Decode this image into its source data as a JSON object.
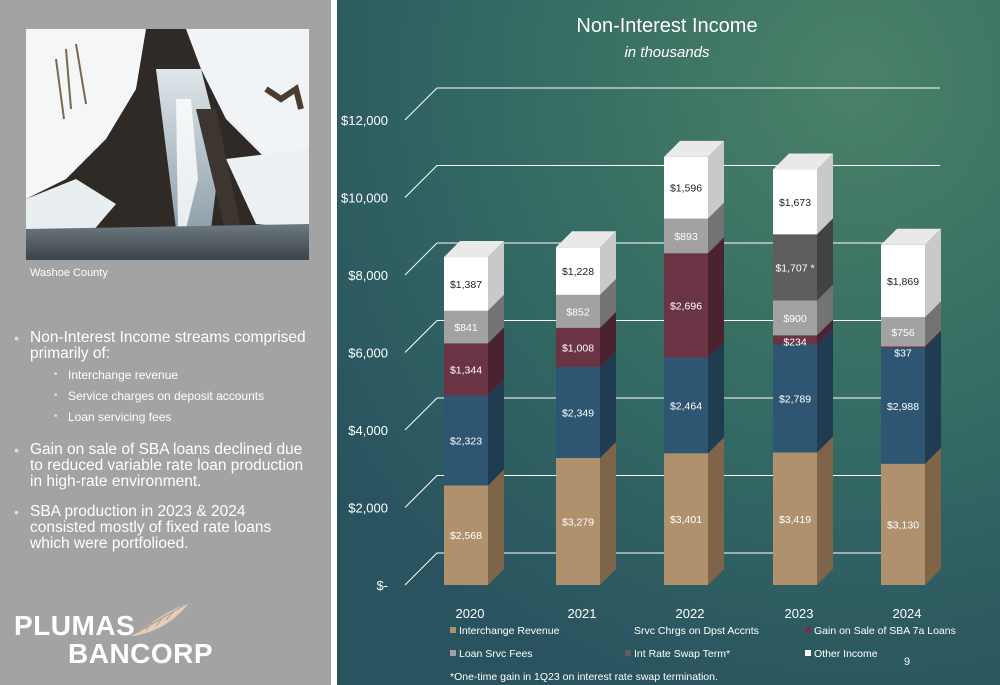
{
  "photo": {
    "caption": "Washoe County",
    "icon": "snowy-waterfall-photo"
  },
  "bullets": {
    "streams": {
      "text": "Non-Interest Income streams comprised primarily of:",
      "sub_items": [
        "Interchange revenue",
        "Service charges on deposit accounts",
        "Loan servicing fees"
      ]
    },
    "gain": "Gain on sale of SBA loans declined due to reduced variable rate loan production in high-rate environment.",
    "sba": "SBA production in 2023 & 2024 consisted mostly of fixed rate loans which were portfolioed."
  },
  "logo": {
    "line1": "PLUMAS",
    "line2": "BANCORP",
    "icon": "feather-icon",
    "feather_color": "#e8cdb5"
  },
  "page_number": "9",
  "colors": {
    "background": "#2f5f5e",
    "left_panel": "#a3a3a3"
  },
  "chart_data": {
    "type": "bar",
    "stacked": true,
    "title": "Non-Interest Income",
    "subtitle": "in thousands",
    "categories": [
      "2020",
      "2021",
      "2022",
      "2023",
      "2024"
    ],
    "ylim": [
      0,
      12000
    ],
    "y_ticks": [
      0,
      2000,
      4000,
      6000,
      8000,
      10000,
      12000
    ],
    "y_tick_labels": [
      "$-",
      "$2,000",
      "$4,000",
      "$6,000",
      "$8,000",
      "$10,000",
      "$12,000"
    ],
    "grid": true,
    "legend_position": "bottom",
    "series": [
      {
        "name": "Interchange Revenue",
        "color": "#b0916d",
        "side": "#7e6448",
        "values": [
          2568,
          3279,
          3401,
          3419,
          3130
        ],
        "labels": [
          "$2,568",
          "$3,279",
          "$3,401",
          "$3,419",
          "$3,130"
        ]
      },
      {
        "name": "Srvc Chrgs on Dpst Accnts",
        "color": "#2e5672",
        "side": "#1f3c51",
        "values": [
          2323,
          2349,
          2464,
          2789,
          2988
        ],
        "labels": [
          "$2,323",
          "$2,349",
          "$2,464",
          "$2,789",
          "$2,988"
        ]
      },
      {
        "name": "Gain on Sale of SBA 7a Loans",
        "color": "#6b3444",
        "side": "#4b2230",
        "values": [
          1344,
          1008,
          2696,
          234,
          37
        ],
        "labels": [
          "$1,344",
          "$1,008",
          "$2,696",
          "$234",
          "$37"
        ]
      },
      {
        "name": "Loan Srvc Fees",
        "color": "#a2a2a2",
        "side": "#737373",
        "values": [
          841,
          852,
          893,
          900,
          756
        ],
        "labels": [
          "$841",
          "$852",
          "$893",
          "$900",
          "$756"
        ]
      },
      {
        "name": "Int Rate Swap Term*",
        "color": "#5e5e5e",
        "side": "#424242",
        "values": [
          0,
          0,
          0,
          1707,
          0
        ],
        "labels": [
          "",
          "",
          "",
          "$1,707 *",
          ""
        ]
      },
      {
        "name": "Other Income",
        "color": "#ffffff",
        "side": "#c9c9c9",
        "values": [
          1387,
          1228,
          1596,
          1673,
          1869
        ],
        "labels": [
          "$1,387",
          "$1,228",
          "$1,596",
          "$1,673",
          "$1,869"
        ]
      }
    ],
    "footnote": "*One-time gain in 1Q23 on interest rate swap termination."
  }
}
